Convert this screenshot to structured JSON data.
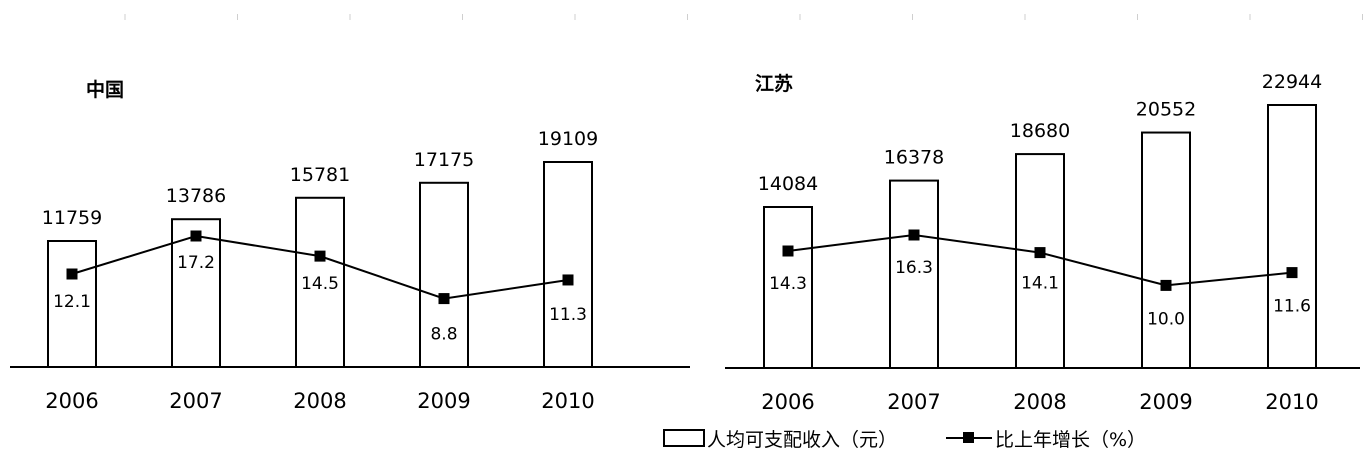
{
  "legend": {
    "bar_label": "人均可支配收入（元）",
    "line_label": "比上年增长（%）"
  },
  "chart_data": [
    {
      "type": "bar",
      "title": "中国",
      "categories": [
        "2006",
        "2007",
        "2008",
        "2009",
        "2010"
      ],
      "series": [
        {
          "name": "人均可支配收入（元）",
          "values": [
            11759,
            13786,
            15781,
            17175,
            19109
          ]
        },
        {
          "name": "比上年增长（%）",
          "type": "line",
          "values": [
            12.1,
            17.2,
            14.5,
            8.8,
            11.3
          ]
        }
      ],
      "legend_position": "bottom-right"
    },
    {
      "type": "bar",
      "title": "江苏",
      "categories": [
        "2006",
        "2007",
        "2008",
        "2009",
        "2010"
      ],
      "series": [
        {
          "name": "人均可支配收入（元）",
          "values": [
            14084,
            16378,
            18680,
            20552,
            22944
          ]
        },
        {
          "name": "比上年增长（%）",
          "type": "line",
          "values": [
            14.3,
            16.3,
            14.1,
            10.0,
            11.6
          ]
        }
      ],
      "legend_position": "bottom-right"
    }
  ]
}
